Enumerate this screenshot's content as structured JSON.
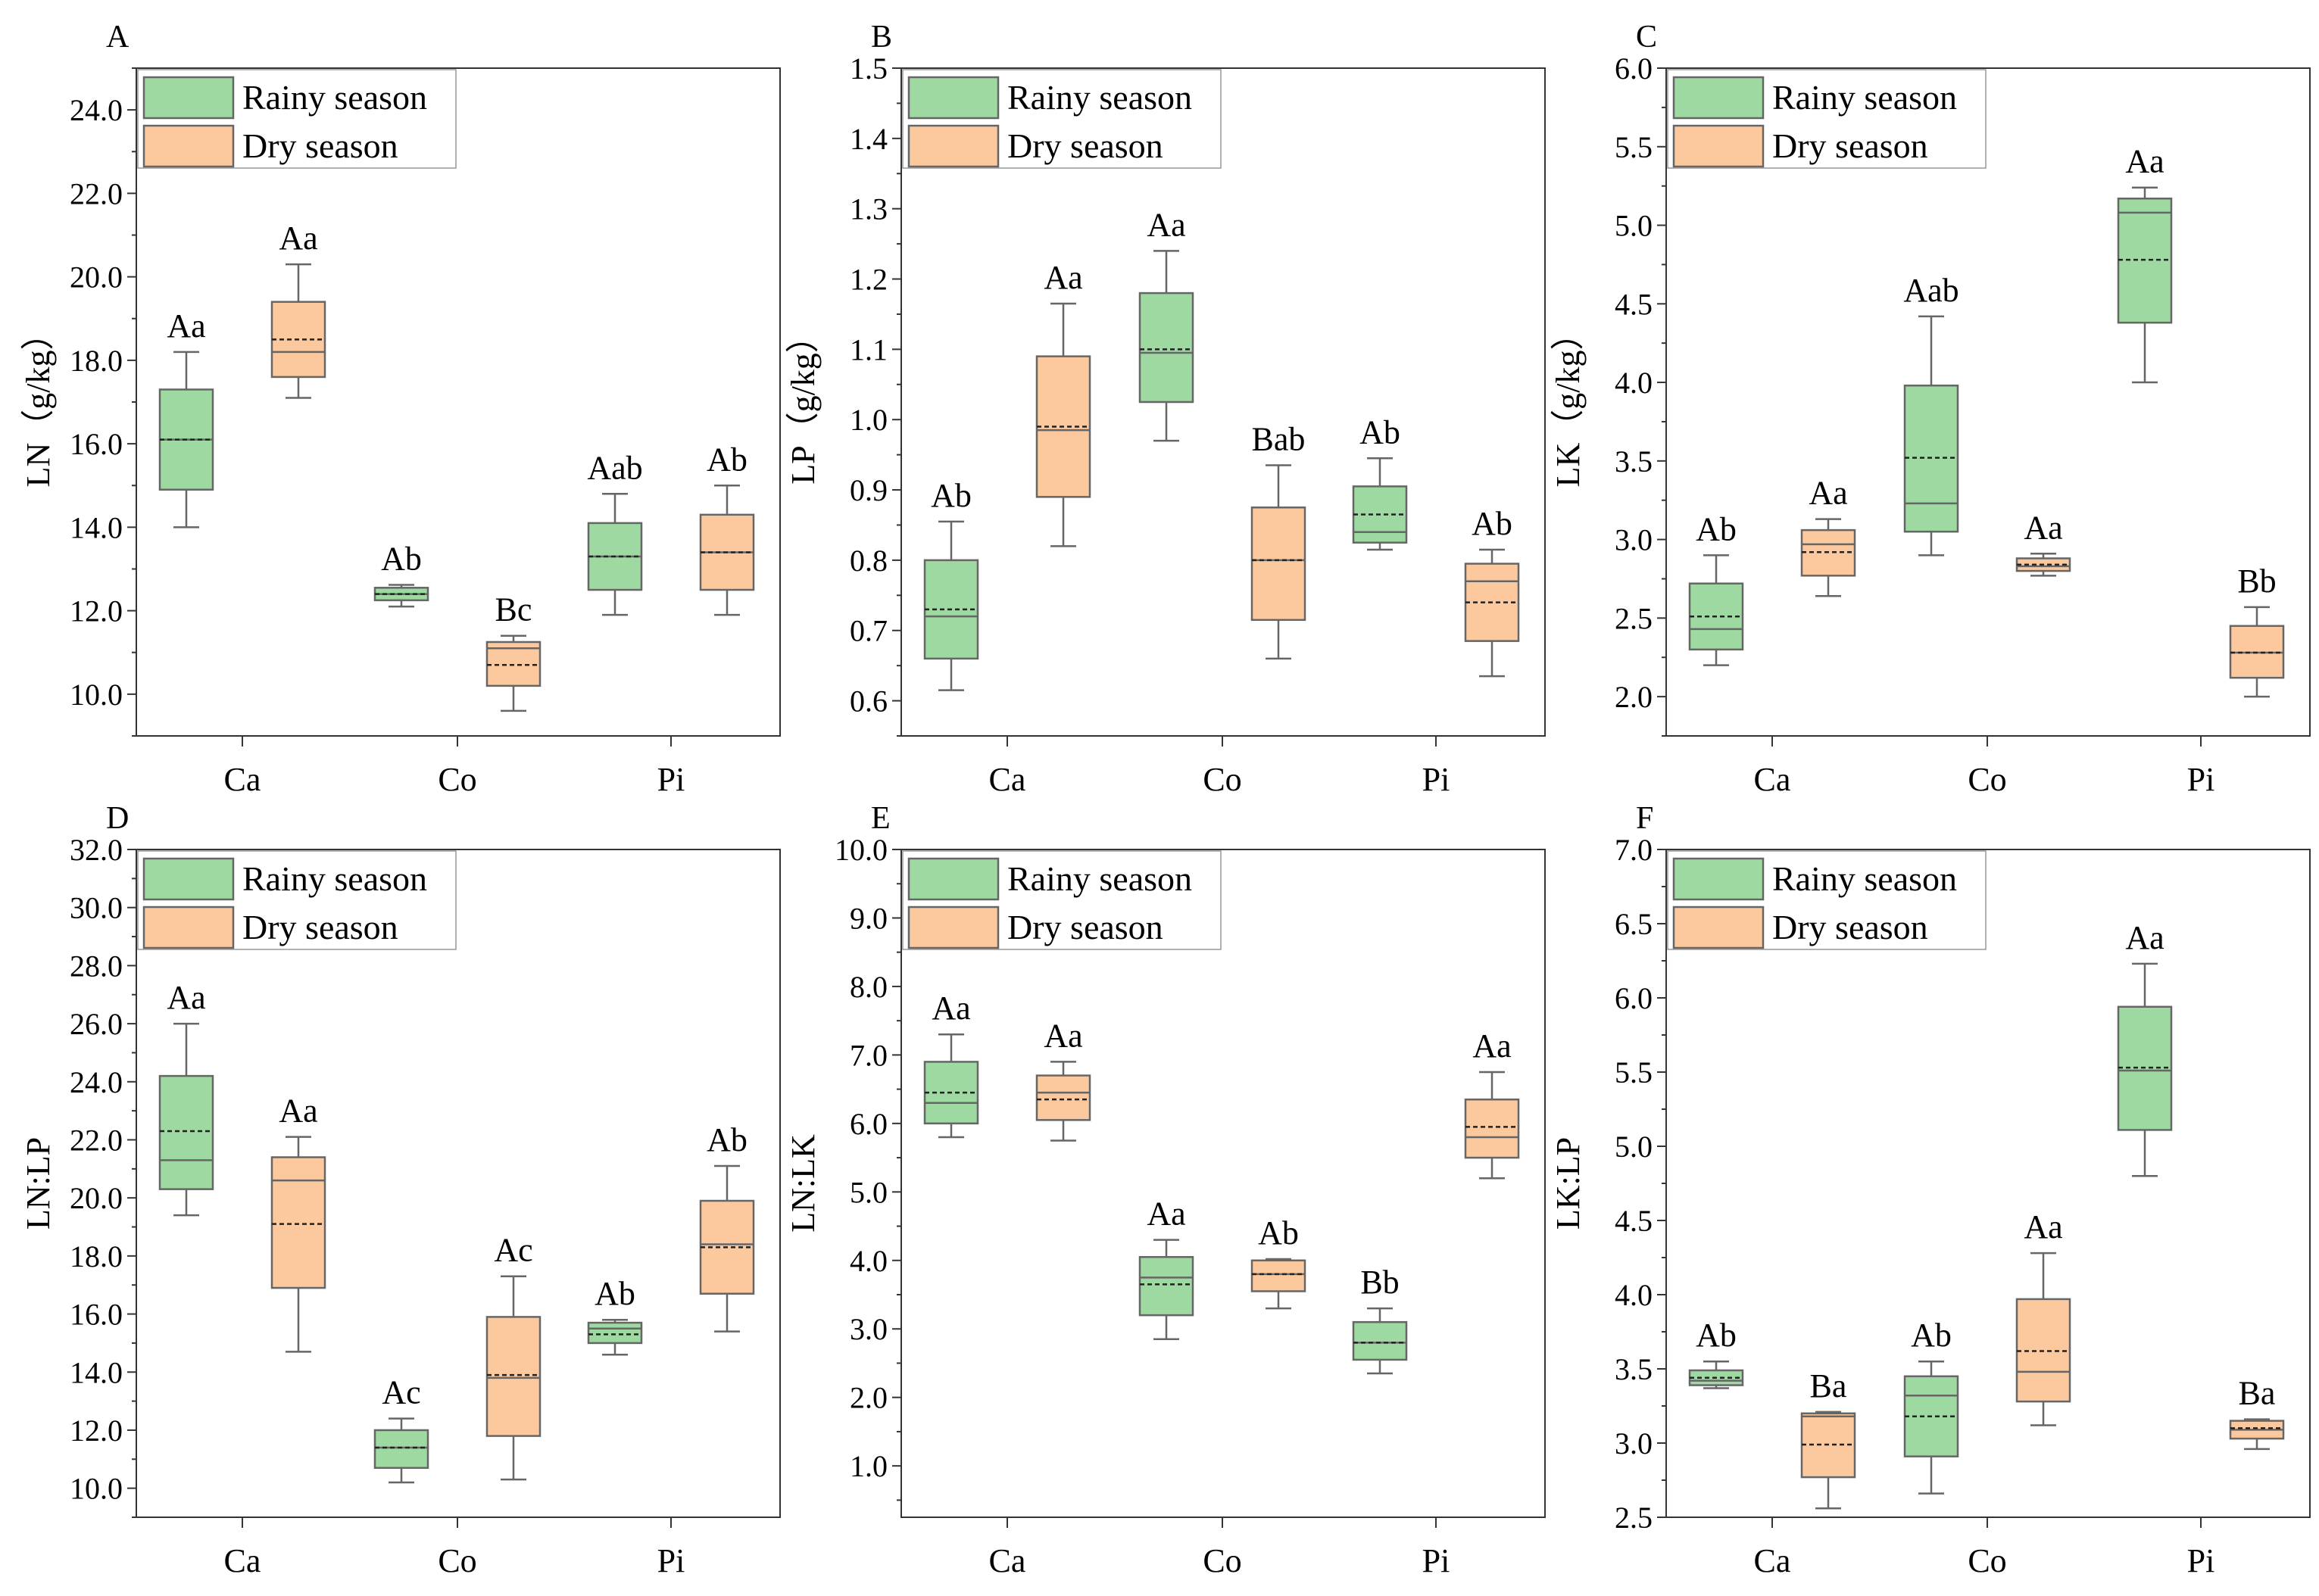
{
  "chart_data": [
    {
      "panel_label": "A",
      "type": "box",
      "ylabel": "LN（g/kg）",
      "ylim": [
        9.0,
        25.0
      ],
      "yticks": [
        "10.0",
        "12.0",
        "14.0",
        "16.0",
        "18.0",
        "20.0",
        "22.0",
        "24.0"
      ],
      "ytick_values": [
        10,
        12,
        14,
        16,
        18,
        20,
        22,
        24
      ],
      "categories": [
        "Ca",
        "Co",
        "Pi"
      ],
      "series": [
        {
          "name": "Rainy season",
          "color": "#9dd9a0",
          "boxes": [
            {
              "min": 14.0,
              "q1": 14.9,
              "median": 16.1,
              "mean": 16.1,
              "q3": 17.3,
              "max": 18.2,
              "label": "Aa"
            },
            {
              "min": 12.1,
              "q1": 12.25,
              "median": 12.4,
              "mean": 12.4,
              "q3": 12.55,
              "max": 12.62,
              "label": "Ab"
            },
            {
              "min": 11.9,
              "q1": 12.5,
              "median": 13.3,
              "mean": 13.3,
              "q3": 14.1,
              "max": 14.8,
              "label": "Aab"
            }
          ]
        },
        {
          "name": "Dry season",
          "color": "#fbc99d",
          "boxes": [
            {
              "min": 17.1,
              "q1": 17.6,
              "median": 18.2,
              "mean": 18.5,
              "q3": 19.4,
              "max": 20.3,
              "label": "Aa"
            },
            {
              "min": 9.6,
              "q1": 10.2,
              "median": 11.1,
              "mean": 10.7,
              "q3": 11.25,
              "max": 11.4,
              "label": "Bc"
            },
            {
              "min": 11.9,
              "q1": 12.5,
              "median": 13.4,
              "mean": 13.4,
              "q3": 14.3,
              "max": 15.0,
              "label": "Ab"
            }
          ]
        }
      ]
    },
    {
      "panel_label": "B",
      "type": "box",
      "ylabel": "LP（g/kg）",
      "ylim": [
        0.55,
        1.5
      ],
      "yticks": [
        "0.6",
        "0.7",
        "0.8",
        "0.9",
        "1.0",
        "1.1",
        "1.2",
        "1.3",
        "1.4",
        "1.5"
      ],
      "ytick_values": [
        0.6,
        0.7,
        0.8,
        0.9,
        1.0,
        1.1,
        1.2,
        1.3,
        1.4,
        1.5
      ],
      "categories": [
        "Ca",
        "Co",
        "Pi"
      ],
      "series": [
        {
          "name": "Rainy season",
          "color": "#9dd9a0",
          "boxes": [
            {
              "min": 0.615,
              "q1": 0.66,
              "median": 0.72,
              "mean": 0.73,
              "q3": 0.8,
              "max": 0.855,
              "label": "Ab"
            },
            {
              "min": 0.97,
              "q1": 1.025,
              "median": 1.095,
              "mean": 1.1,
              "q3": 1.18,
              "max": 1.24,
              "label": "Aa"
            },
            {
              "min": 0.815,
              "q1": 0.825,
              "median": 0.84,
              "mean": 0.865,
              "q3": 0.905,
              "max": 0.945,
              "label": "Ab"
            }
          ]
        },
        {
          "name": "Dry season",
          "color": "#fbc99d",
          "boxes": [
            {
              "min": 0.82,
              "q1": 0.89,
              "median": 0.985,
              "mean": 0.99,
              "q3": 1.09,
              "max": 1.165,
              "label": "Aa"
            },
            {
              "min": 0.66,
              "q1": 0.715,
              "median": 0.8,
              "mean": 0.8,
              "q3": 0.875,
              "max": 0.935,
              "label": "Bab"
            },
            {
              "min": 0.635,
              "q1": 0.685,
              "median": 0.77,
              "mean": 0.74,
              "q3": 0.795,
              "max": 0.815,
              "label": "Ab"
            }
          ]
        }
      ]
    },
    {
      "panel_label": "C",
      "type": "box",
      "ylabel": "LK（g/kg）",
      "ylim": [
        1.75,
        6.0
      ],
      "yticks": [
        "2.0",
        "2.5",
        "3.0",
        "3.5",
        "4.0",
        "4.5",
        "5.0",
        "5.5",
        "6.0"
      ],
      "ytick_values": [
        2.0,
        2.5,
        3.0,
        3.5,
        4.0,
        4.5,
        5.0,
        5.5,
        6.0
      ],
      "categories": [
        "Ca",
        "Co",
        "Pi"
      ],
      "series": [
        {
          "name": "Rainy season",
          "color": "#9dd9a0",
          "boxes": [
            {
              "min": 2.2,
              "q1": 2.3,
              "median": 2.43,
              "mean": 2.51,
              "q3": 2.72,
              "max": 2.9,
              "label": "Ab"
            },
            {
              "min": 2.9,
              "q1": 3.05,
              "median": 3.23,
              "mean": 3.52,
              "q3": 3.98,
              "max": 4.42,
              "label": "Aab"
            },
            {
              "min": 4.0,
              "q1": 4.38,
              "median": 5.08,
              "mean": 4.78,
              "q3": 5.17,
              "max": 5.24,
              "label": "Aa"
            }
          ]
        },
        {
          "name": "Dry season",
          "color": "#fbc99d",
          "boxes": [
            {
              "min": 2.64,
              "q1": 2.77,
              "median": 2.97,
              "mean": 2.92,
              "q3": 3.06,
              "max": 3.13,
              "label": "Aa"
            },
            {
              "min": 2.77,
              "q1": 2.8,
              "median": 2.83,
              "mean": 2.84,
              "q3": 2.88,
              "max": 2.91,
              "label": "Aa"
            },
            {
              "min": 2.0,
              "q1": 2.12,
              "median": 2.28,
              "mean": 2.28,
              "q3": 2.45,
              "max": 2.57,
              "label": "Bb"
            }
          ]
        }
      ]
    },
    {
      "panel_label": "D",
      "type": "box",
      "ylabel": "LN:LP",
      "ylim": [
        9.0,
        32.0
      ],
      "yticks": [
        "10.0",
        "12.0",
        "14.0",
        "16.0",
        "18.0",
        "20.0",
        "22.0",
        "24.0",
        "26.0",
        "28.0",
        "30.0",
        "32.0"
      ],
      "ytick_values": [
        10,
        12,
        14,
        16,
        18,
        20,
        22,
        24,
        26,
        28,
        30,
        32
      ],
      "categories": [
        "Ca",
        "Co",
        "Pi"
      ],
      "series": [
        {
          "name": "Rainy season",
          "color": "#9dd9a0",
          "boxes": [
            {
              "min": 19.4,
              "q1": 20.3,
              "median": 21.3,
              "mean": 22.3,
              "q3": 24.2,
              "max": 26.0,
              "label": "Aa"
            },
            {
              "min": 10.2,
              "q1": 10.7,
              "median": 11.4,
              "mean": 11.4,
              "q3": 12.0,
              "max": 12.4,
              "label": "Ac"
            },
            {
              "min": 14.6,
              "q1": 15.0,
              "median": 15.5,
              "mean": 15.3,
              "q3": 15.7,
              "max": 15.8,
              "label": "Ab"
            }
          ]
        },
        {
          "name": "Dry season",
          "color": "#fbc99d",
          "boxes": [
            {
              "min": 14.7,
              "q1": 16.9,
              "median": 20.6,
              "mean": 19.1,
              "q3": 21.4,
              "max": 22.1,
              "label": "Aa"
            },
            {
              "min": 10.3,
              "q1": 11.8,
              "median": 13.8,
              "mean": 13.9,
              "q3": 15.9,
              "max": 17.3,
              "label": "Ac"
            },
            {
              "min": 15.4,
              "q1": 16.7,
              "median": 18.4,
              "mean": 18.3,
              "q3": 19.9,
              "max": 21.1,
              "label": "Ab"
            }
          ]
        }
      ]
    },
    {
      "panel_label": "E",
      "type": "box",
      "ylabel": "LN:LK",
      "ylim": [
        0.25,
        10.0
      ],
      "yticks": [
        "1.0",
        "2.0",
        "3.0",
        "4.0",
        "5.0",
        "6.0",
        "7.0",
        "8.0",
        "9.0",
        "10.0"
      ],
      "ytick_values": [
        1,
        2,
        3,
        4,
        5,
        6,
        7,
        8,
        9,
        10
      ],
      "categories": [
        "Ca",
        "Co",
        "Pi"
      ],
      "series": [
        {
          "name": "Rainy season",
          "color": "#9dd9a0",
          "boxes": [
            {
              "min": 5.8,
              "q1": 6.0,
              "median": 6.3,
              "mean": 6.45,
              "q3": 6.9,
              "max": 7.3,
              "label": "Aa"
            },
            {
              "min": 2.85,
              "q1": 3.2,
              "median": 3.75,
              "mean": 3.65,
              "q3": 4.05,
              "max": 4.3,
              "label": "Aa"
            },
            {
              "min": 2.35,
              "q1": 2.55,
              "median": 2.8,
              "mean": 2.8,
              "q3": 3.1,
              "max": 3.3,
              "label": "Bb"
            }
          ]
        },
        {
          "name": "Dry season",
          "color": "#fbc99d",
          "boxes": [
            {
              "min": 5.75,
              "q1": 6.05,
              "median": 6.45,
              "mean": 6.35,
              "q3": 6.7,
              "max": 6.9,
              "label": "Aa"
            },
            {
              "min": 3.3,
              "q1": 3.55,
              "median": 3.8,
              "mean": 3.8,
              "q3": 4.0,
              "max": 4.02,
              "label": "Ab"
            },
            {
              "min": 5.2,
              "q1": 5.5,
              "median": 5.8,
              "mean": 5.95,
              "q3": 6.35,
              "max": 6.75,
              "label": "Aa"
            }
          ]
        }
      ]
    },
    {
      "panel_label": "F",
      "type": "box",
      "ylabel": "LK:LP",
      "ylim": [
        2.5,
        7.0
      ],
      "yticks": [
        "2.5",
        "3.0",
        "3.5",
        "4.0",
        "4.5",
        "5.0",
        "5.5",
        "6.0",
        "6.5",
        "7.0"
      ],
      "ytick_values": [
        2.5,
        3.0,
        3.5,
        4.0,
        4.5,
        5.0,
        5.5,
        6.0,
        6.5,
        7.0
      ],
      "categories": [
        "Ca",
        "Co",
        "Pi"
      ],
      "series": [
        {
          "name": "Rainy season",
          "color": "#9dd9a0",
          "boxes": [
            {
              "min": 3.37,
              "q1": 3.39,
              "median": 3.42,
              "mean": 3.44,
              "q3": 3.49,
              "max": 3.55,
              "label": "Ab"
            },
            {
              "min": 2.66,
              "q1": 2.91,
              "median": 3.32,
              "mean": 3.18,
              "q3": 3.45,
              "max": 3.55,
              "label": "Ab"
            },
            {
              "min": 4.8,
              "q1": 5.11,
              "median": 5.51,
              "mean": 5.53,
              "q3": 5.94,
              "max": 6.23,
              "label": "Aa"
            }
          ]
        },
        {
          "name": "Dry season",
          "color": "#fbc99d",
          "boxes": [
            {
              "min": 2.56,
              "q1": 2.77,
              "median": 3.18,
              "mean": 2.99,
              "q3": 3.2,
              "max": 3.21,
              "label": "Ba"
            },
            {
              "min": 3.12,
              "q1": 3.28,
              "median": 3.48,
              "mean": 3.62,
              "q3": 3.97,
              "max": 4.28,
              "label": "Aa"
            },
            {
              "min": 2.96,
              "q1": 3.03,
              "median": 3.09,
              "mean": 3.1,
              "q3": 3.15,
              "max": 3.16,
              "label": "Ba"
            }
          ]
        }
      ]
    }
  ]
}
